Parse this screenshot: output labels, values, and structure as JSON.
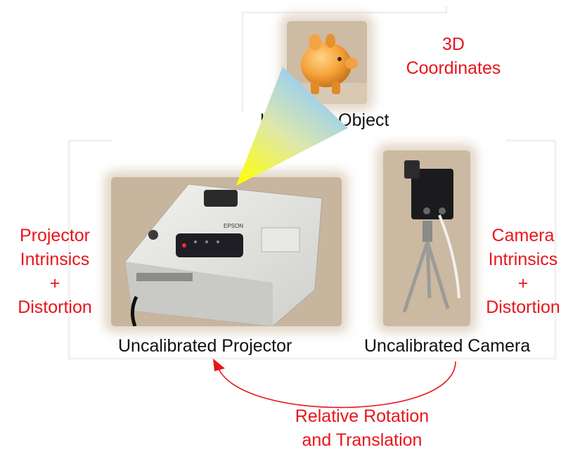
{
  "object": {
    "caption": "Unknown Object",
    "coords_label_1": "3D",
    "coords_label_2": "Coordinates"
  },
  "projector": {
    "caption": "Uncalibrated Projector",
    "brand": "EPSON",
    "intrinsics_1": "Projector",
    "intrinsics_2": "Intrinsics",
    "intrinsics_3": "+",
    "intrinsics_4": "Distortion"
  },
  "camera": {
    "caption": "Uncalibrated Camera",
    "intrinsics_1": "Camera",
    "intrinsics_2": "Intrinsics",
    "intrinsics_3": "+",
    "intrinsics_4": "Distortion"
  },
  "relation": {
    "line_1": "Relative Rotation",
    "line_2": "and Translation"
  },
  "colors": {
    "label_red": "#e8151b",
    "arrow_red": "#e8151b"
  }
}
